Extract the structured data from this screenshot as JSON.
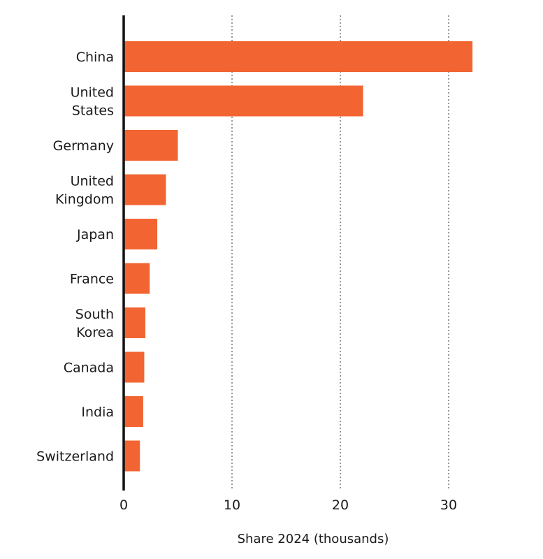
{
  "chart_data": {
    "type": "bar",
    "orientation": "horizontal",
    "categories": [
      "China",
      "United States",
      "Germany",
      "United Kingdom",
      "Japan",
      "France",
      "South Korea",
      "Canada",
      "India",
      "Switzerland"
    ],
    "category_lines": [
      [
        "China"
      ],
      [
        "United",
        "States"
      ],
      [
        "Germany"
      ],
      [
        "United",
        "Kingdom"
      ],
      [
        "Japan"
      ],
      [
        "France"
      ],
      [
        "South",
        "Korea"
      ],
      [
        "Canada"
      ],
      [
        "India"
      ],
      [
        "Switzerland"
      ]
    ],
    "values": [
      32.2,
      22.1,
      5.0,
      3.9,
      3.1,
      2.4,
      2.0,
      1.9,
      1.8,
      1.5
    ],
    "xlabel": "Share 2024 (thousands)",
    "xlim": [
      0,
      33
    ],
    "xticks": [
      0,
      10,
      20,
      30
    ],
    "grid": "vertical dotted",
    "colors": {
      "bar": "#f26532",
      "axis": "#111111",
      "grid": "#555555"
    }
  }
}
